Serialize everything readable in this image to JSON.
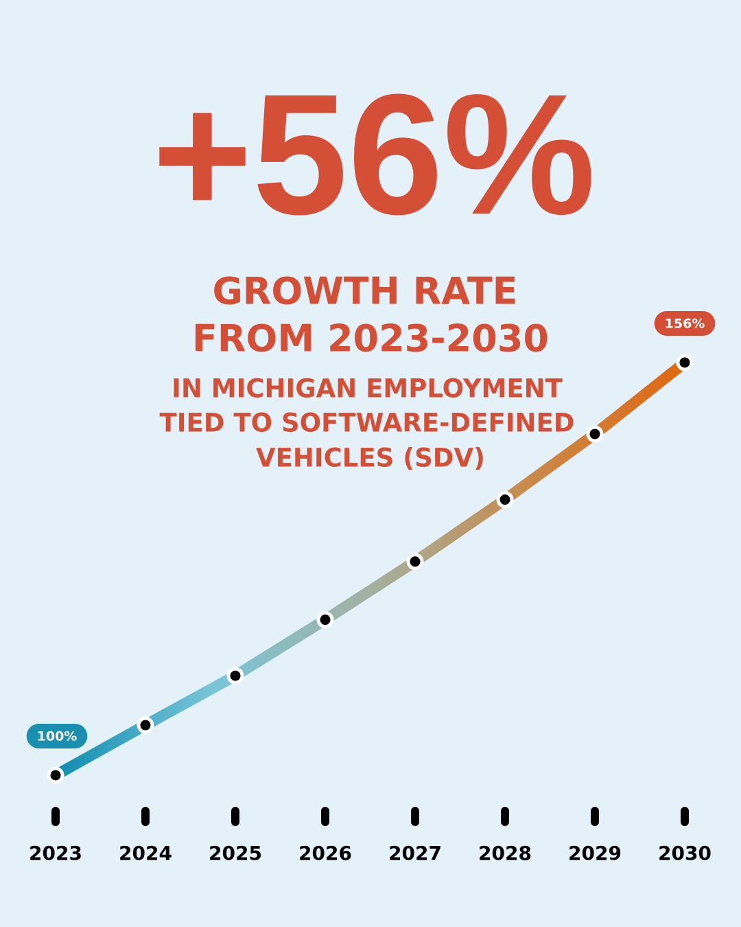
{
  "chart_data": {
    "type": "line",
    "title": "+56%",
    "subtitle": [
      "GROWTH RATE",
      "FROM 2023-2030"
    ],
    "caption": [
      "IN MICHIGAN EMPLOYMENT",
      "TIED TO SOFTWARE-DEFINED",
      "VEHICLES (SDV)"
    ],
    "categories": [
      "2023",
      "2024",
      "2025",
      "2026",
      "2027",
      "2028",
      "2029",
      "2030"
    ],
    "values": [
      100,
      106.8,
      113.5,
      121.1,
      129,
      137.4,
      146.3,
      156
    ],
    "value_labels": [
      "100%",
      null,
      null,
      null,
      null,
      null,
      null,
      "156%"
    ],
    "label_colors": [
      "#1a8fb0",
      null,
      null,
      null,
      null,
      null,
      null,
      "#d44f35"
    ],
    "gradient": [
      "#0e8db0",
      "#79c5d8",
      "#a3b1a0",
      "#c98a4a",
      "#e0680f"
    ],
    "text_color": "#d44f35"
  }
}
